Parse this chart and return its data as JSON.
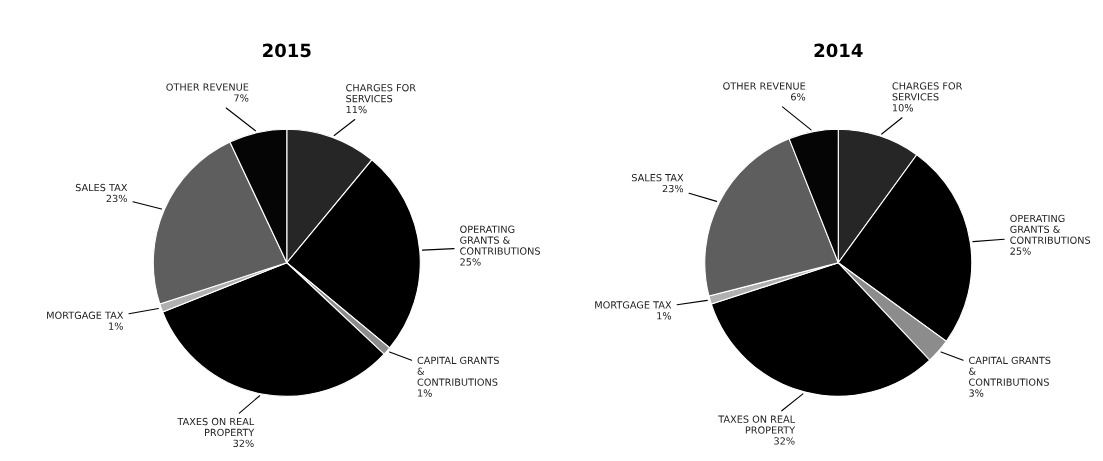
{
  "chart_data": [
    {
      "type": "pie",
      "title": "2015",
      "categories": [
        "CHARGES FOR\nSERVICES",
        "OPERATING\nGRANTS &\nCONTRIBUTIONS",
        "CAPITAL GRANTS\n&\nCONTRIBUTIONS",
        "TAXES ON REAL\nPROPERTY",
        "MORTGAGE TAX",
        "SALES TAX",
        "OTHER REVENUE"
      ],
      "values": [
        11,
        25,
        1,
        32,
        1,
        23,
        7
      ],
      "value_labels": [
        "11%",
        "25%",
        "1%",
        "32%",
        "1%",
        "23%",
        "7%"
      ],
      "colors": [
        "#262626",
        "#000000",
        "#8c8c8c",
        "#000000",
        "#b0b0b0",
        "#5e5e5e",
        "#050505"
      ]
    },
    {
      "type": "pie",
      "title": "2014",
      "categories": [
        "CHARGES FOR\nSERVICES",
        "OPERATING\nGRANTS &\nCONTRIBUTIONS",
        "CAPITAL GRANTS\n&\nCONTRIBUTIONS",
        "TAXES ON REAL\nPROPERTY",
        "MORTGAGE TAX",
        "SALES TAX",
        "OTHER REVENUE"
      ],
      "values": [
        10,
        25,
        3,
        32,
        1,
        23,
        6
      ],
      "value_labels": [
        "10%",
        "25%",
        "3%",
        "32%",
        "1%",
        "23%",
        "6%"
      ],
      "colors": [
        "#262626",
        "#000000",
        "#8c8c8c",
        "#000000",
        "#b0b0b0",
        "#5e5e5e",
        "#050505"
      ]
    }
  ]
}
